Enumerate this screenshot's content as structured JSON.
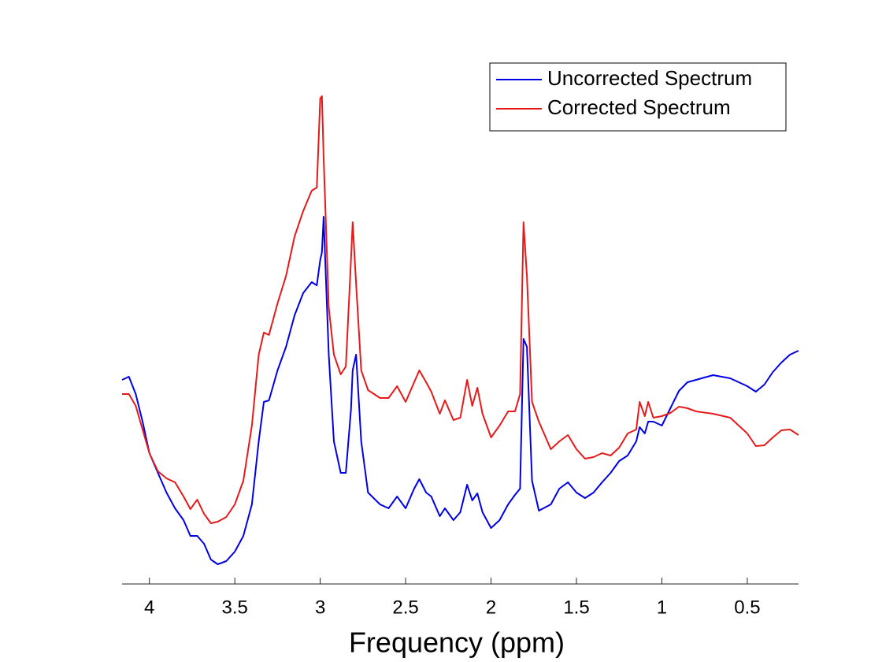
{
  "chart_data": {
    "type": "line",
    "xlabel": "Frequency (ppm)",
    "x": [
      4.16,
      4.12,
      4.08,
      4.04,
      4.0,
      3.95,
      3.9,
      3.85,
      3.8,
      3.76,
      3.72,
      3.68,
      3.64,
      3.6,
      3.55,
      3.5,
      3.45,
      3.4,
      3.36,
      3.33,
      3.3,
      3.25,
      3.2,
      3.15,
      3.1,
      3.05,
      3.02,
      3.0,
      2.99,
      2.98,
      2.95,
      2.92,
      2.88,
      2.85,
      2.82,
      2.81,
      2.79,
      2.76,
      2.72,
      2.65,
      2.6,
      2.55,
      2.5,
      2.45,
      2.42,
      2.38,
      2.35,
      2.3,
      2.27,
      2.22,
      2.18,
      2.14,
      2.11,
      2.08,
      2.05,
      2.0,
      1.95,
      1.9,
      1.86,
      1.83,
      1.81,
      1.79,
      1.76,
      1.72,
      1.65,
      1.6,
      1.55,
      1.5,
      1.45,
      1.4,
      1.35,
      1.3,
      1.25,
      1.2,
      1.15,
      1.13,
      1.1,
      1.08,
      1.05,
      1.0,
      0.95,
      0.9,
      0.85,
      0.8,
      0.7,
      0.6,
      0.5,
      0.45,
      0.4,
      0.35,
      0.3,
      0.25,
      0.2
    ],
    "series": [
      {
        "name": "Uncorrected Spectrum",
        "color": "#0000e6",
        "values": [
          259,
          263,
          241,
          206,
          166,
          141,
          116,
          96,
          81,
          61,
          61,
          51,
          31,
          25,
          29,
          41,
          61,
          101,
          181,
          231,
          233,
          271,
          301,
          341,
          369,
          383,
          379,
          411,
          421,
          466,
          291,
          181,
          141,
          141,
          221,
          271,
          291,
          181,
          116,
          101,
          96,
          111,
          96,
          121,
          133,
          116,
          111,
          86,
          96,
          81,
          91,
          126,
          106,
          115,
          91,
          71,
          81,
          101,
          113,
          121,
          311,
          301,
          131,
          93,
          101,
          121,
          129,
          116,
          109,
          116,
          129,
          141,
          156,
          163,
          181,
          199,
          191,
          206,
          206,
          201,
          223,
          245,
          256,
          259,
          265,
          261,
          251,
          244,
          253,
          269,
          281,
          291,
          296
        ]
      },
      {
        "name": "Corrected Spectrum",
        "color": "#e61a1a",
        "values": [
          241,
          241,
          226,
          196,
          166,
          143,
          134,
          129,
          111,
          95,
          107,
          89,
          77,
          79,
          85,
          101,
          131,
          201,
          291,
          319,
          316,
          356,
          391,
          441,
          473,
          499,
          503,
          616,
          619,
          541,
          351,
          291,
          266,
          276,
          411,
          459,
          381,
          271,
          246,
          236,
          236,
          251,
          231,
          256,
          271,
          256,
          244,
          216,
          233,
          208,
          211,
          259,
          226,
          249,
          216,
          186,
          201,
          219,
          219,
          241,
          459,
          391,
          231,
          206,
          171,
          181,
          189,
          171,
          159,
          161,
          166,
          163,
          173,
          191,
          196,
          231,
          213,
          231,
          211,
          213,
          217,
          225,
          223,
          219,
          216,
          211,
          191,
          175,
          176,
          186,
          195,
          196,
          189
        ]
      }
    ],
    "xlim": [
      4.16,
      0.2
    ],
    "xticks": [
      4,
      3.5,
      3,
      2.5,
      2,
      1.5,
      1,
      0.5
    ],
    "ylim": [
      0,
      678
    ],
    "legend": "northeast"
  }
}
